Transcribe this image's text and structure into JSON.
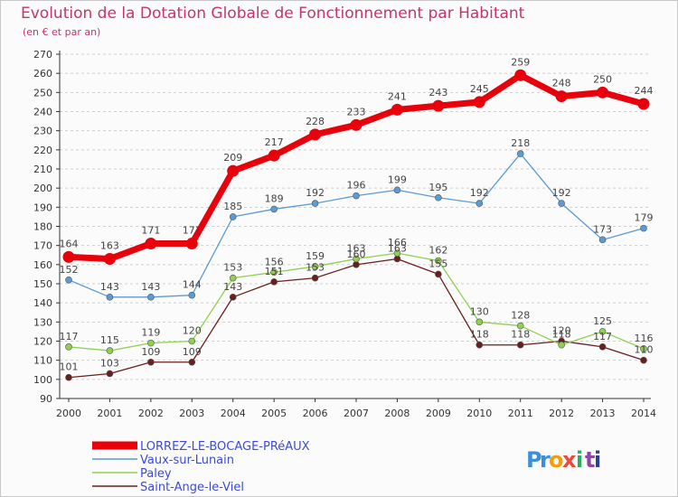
{
  "title": "Evolution de la Dotation Globale de Fonctionnement par Habitant",
  "subtitle": "(en € et par an)",
  "brand": {
    "text": "Proxiti",
    "letters": [
      "P",
      "r",
      "o",
      "x",
      "i",
      "t",
      "i"
    ],
    "colors": [
      "#3a8fd8",
      "#3a8fd8",
      "#f39c12",
      "#e74c3c",
      "#27ae60",
      "#8e44ad",
      "#2c3e90"
    ]
  },
  "chart_data": {
    "type": "line",
    "title": "Evolution de la Dotation Globale de Fonctionnement par Habitant",
    "subtitle": "(en € et par an)",
    "xlabel": "",
    "ylabel": "",
    "x": [
      "2000",
      "2001",
      "2002",
      "2003",
      "2004",
      "2005",
      "2006",
      "2007",
      "2008",
      "2009",
      "2010",
      "2011",
      "2012",
      "2013",
      "2014"
    ],
    "ylim": [
      90,
      270
    ],
    "yticks": [
      90,
      100,
      110,
      120,
      130,
      140,
      150,
      160,
      170,
      180,
      190,
      200,
      210,
      220,
      230,
      240,
      250,
      260,
      270
    ],
    "grid": "horizontal dashed",
    "legend": "bottom-left",
    "series": [
      {
        "name": "LORREZ-LE-BOCAGE-PRéAUX",
        "color": "#e8000b",
        "values": [
          164,
          163,
          171,
          171,
          209,
          217,
          228,
          233,
          241,
          243,
          245,
          259,
          248,
          250,
          244
        ]
      },
      {
        "name": "Vaux-sur-Lunain",
        "color": "#5b9bd5",
        "values": [
          152,
          143,
          143,
          144,
          185,
          189,
          192,
          196,
          199,
          195,
          192,
          218,
          192,
          173,
          179
        ]
      },
      {
        "name": "Paley",
        "color": "#8fd14f",
        "values": [
          117,
          115,
          119,
          120,
          153,
          156,
          159,
          163,
          166,
          162,
          130,
          128,
          118,
          125,
          116
        ]
      },
      {
        "name": "Saint-Ange-le-Viel",
        "color": "#6b1e1e",
        "values": [
          101,
          103,
          109,
          109,
          143,
          151,
          153,
          160,
          163,
          155,
          118,
          118,
          120,
          117,
          110
        ]
      }
    ]
  }
}
